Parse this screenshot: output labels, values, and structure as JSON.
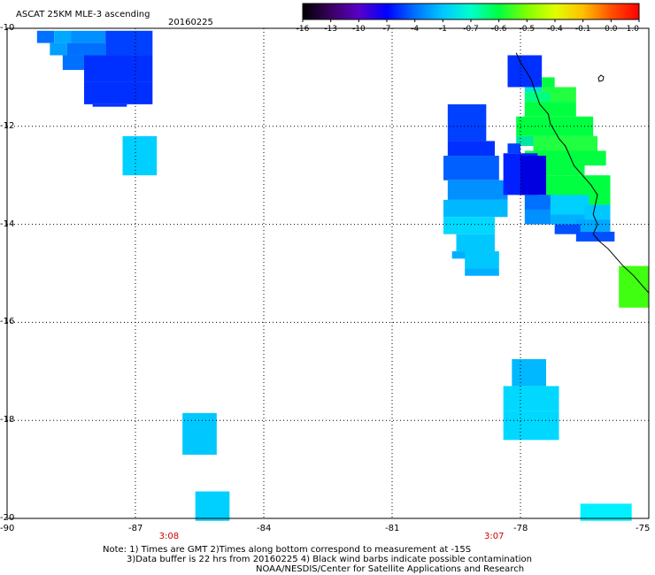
{
  "title": "ASCAT 25KM MLE-3 ascending",
  "date": "20160225",
  "colorbar": {
    "ticks": [
      "-16",
      "-13",
      "-10",
      "-7",
      "-4",
      "-1",
      "-0.7",
      "-0.6",
      "-0.5",
      "-0.4",
      "-0.1",
      "0.0",
      "1.0"
    ],
    "colors": [
      "#000000",
      "#3a0060",
      "#5a00c8",
      "#0000ff",
      "#0070ff",
      "#00c8ff",
      "#00ffcc",
      "#00ff40",
      "#80ff00",
      "#e0ff00",
      "#ffc000",
      "#ff5000",
      "#ff0000"
    ]
  },
  "axes": {
    "x_ticks": [
      "-90",
      "-87",
      "-84",
      "-81",
      "-78",
      "-75"
    ],
    "y_ticks": [
      "-10",
      "-12",
      "-14",
      "-16",
      "-18",
      "-20"
    ],
    "x_range": [
      -90,
      -75
    ],
    "y_range": [
      -10,
      -20
    ]
  },
  "time_labels": [
    {
      "text": "3:08",
      "lon": -86.2
    },
    {
      "text": "3:07",
      "lon": -78.6
    }
  ],
  "notes": {
    "line1": "Note: 1) Times are GMT 2)Times along bottom correspond to measurement at -15S",
    "line2": "3)Data buffer is 22 hrs from 20160225 4) Black wind barbs indicate possible contamination",
    "line3": "NOAA/NESDIS/Center for Satellite Applications and Research"
  },
  "cells": [
    {
      "lon0": -89.3,
      "lon1": -88.9,
      "lat0": -10.05,
      "lat1": -10.3,
      "c": "#0070ff"
    },
    {
      "lon0": -88.9,
      "lon1": -88.5,
      "lat0": -10.05,
      "lat1": -10.3,
      "c": "#00a8ff"
    },
    {
      "lon0": -88.5,
      "lon1": -87.7,
      "lat0": -10.05,
      "lat1": -10.3,
      "c": "#0090ff"
    },
    {
      "lon0": -87.7,
      "lon1": -86.6,
      "lat0": -10.05,
      "lat1": -10.55,
      "c": "#0040ff"
    },
    {
      "lon0": -89.0,
      "lon1": -88.6,
      "lat0": -10.3,
      "lat1": -10.55,
      "c": "#00a0ff"
    },
    {
      "lon0": -88.6,
      "lon1": -87.7,
      "lat0": -10.3,
      "lat1": -10.55,
      "c": "#0070ff"
    },
    {
      "lon0": -88.7,
      "lon1": -88.2,
      "lat0": -10.55,
      "lat1": -10.85,
      "c": "#0070ff"
    },
    {
      "lon0": -88.2,
      "lon1": -86.6,
      "lat0": -10.55,
      "lat1": -11.1,
      "c": "#0030ff"
    },
    {
      "lon0": -88.2,
      "lon1": -86.6,
      "lat0": -11.1,
      "lat1": -11.55,
      "c": "#0030ff"
    },
    {
      "lon0": -88.0,
      "lon1": -87.2,
      "lat0": -11.55,
      "lat1": -11.6,
      "c": "#0030ff"
    },
    {
      "lon0": -87.3,
      "lon1": -86.5,
      "lat0": -12.2,
      "lat1": -13.0,
      "c": "#00d0ff"
    },
    {
      "lon0": -78.3,
      "lon1": -77.5,
      "lat0": -10.55,
      "lat1": -11.2,
      "c": "#0030ff"
    },
    {
      "lon0": -77.5,
      "lon1": -77.2,
      "lat0": -11.0,
      "lat1": -11.2,
      "c": "#00ff40"
    },
    {
      "lon0": -77.9,
      "lon1": -77.5,
      "lat0": -11.2,
      "lat1": -11.3,
      "c": "#00e8d0"
    },
    {
      "lon0": -77.5,
      "lon1": -76.7,
      "lat0": -11.2,
      "lat1": -11.5,
      "c": "#20ff40"
    },
    {
      "lon0": -77.9,
      "lon1": -77.3,
      "lat0": -11.3,
      "lat1": -11.5,
      "c": "#00ff80"
    },
    {
      "lon0": -77.9,
      "lon1": -76.7,
      "lat0": -11.5,
      "lat1": -11.8,
      "c": "#00ff40"
    },
    {
      "lon0": -78.1,
      "lon1": -76.3,
      "lat0": -11.8,
      "lat1": -12.2,
      "c": "#00ff40"
    },
    {
      "lon0": -78.1,
      "lon1": -77.7,
      "lat0": -12.2,
      "lat1": -12.4,
      "c": "#00e8a0"
    },
    {
      "lon0": -77.7,
      "lon1": -76.2,
      "lat0": -12.2,
      "lat1": -12.5,
      "c": "#20ff40"
    },
    {
      "lon0": -76.5,
      "lon1": -76.0,
      "lat0": -12.5,
      "lat1": -12.8,
      "c": "#00ff40"
    },
    {
      "lon0": -77.9,
      "lon1": -76.5,
      "lat0": -12.5,
      "lat1": -13.0,
      "c": "#00ff40"
    },
    {
      "lon0": -77.4,
      "lon1": -75.9,
      "lat0": -13.0,
      "lat1": -13.6,
      "c": "#00ff40"
    },
    {
      "lon0": -79.7,
      "lon1": -78.8,
      "lat0": -11.55,
      "lat1": -12.3,
      "c": "#0040ff"
    },
    {
      "lon0": -79.7,
      "lon1": -78.6,
      "lat0": -12.3,
      "lat1": -12.6,
      "c": "#0030ff"
    },
    {
      "lon0": -79.8,
      "lon1": -78.5,
      "lat0": -12.6,
      "lat1": -13.1,
      "c": "#0060ff"
    },
    {
      "lon0": -79.7,
      "lon1": -78.3,
      "lat0": -13.1,
      "lat1": -13.5,
      "c": "#0090ff"
    },
    {
      "lon0": -79.8,
      "lon1": -78.3,
      "lat0": -13.5,
      "lat1": -13.85,
      "c": "#00b8ff"
    },
    {
      "lon0": -79.8,
      "lon1": -78.6,
      "lat0": -13.85,
      "lat1": -14.2,
      "c": "#00d8ff"
    },
    {
      "lon0": -79.5,
      "lon1": -78.6,
      "lat0": -14.2,
      "lat1": -14.55,
      "c": "#00c8ff"
    },
    {
      "lon0": -79.6,
      "lon1": -78.8,
      "lat0": -14.55,
      "lat1": -14.7,
      "c": "#00b0ff"
    },
    {
      "lon0": -79.3,
      "lon1": -78.5,
      "lat0": -14.55,
      "lat1": -14.9,
      "c": "#00c8ff"
    },
    {
      "lon0": -79.3,
      "lon1": -78.5,
      "lat0": -14.9,
      "lat1": -15.05,
      "c": "#00b0ff"
    },
    {
      "lon0": -78.3,
      "lon1": -78.0,
      "lat0": -12.35,
      "lat1": -12.55,
      "c": "#0040ff"
    },
    {
      "lon0": -78.4,
      "lon1": -77.6,
      "lat0": -12.55,
      "lat1": -13.4,
      "c": "#0020ff"
    },
    {
      "lon0": -78.0,
      "lon1": -77.4,
      "lat0": -12.6,
      "lat1": -13.4,
      "c": "#0000e0"
    },
    {
      "lon0": -77.9,
      "lon1": -77.2,
      "lat0": -13.4,
      "lat1": -13.7,
      "c": "#0070ff"
    },
    {
      "lon0": -77.9,
      "lon1": -77.2,
      "lat0": -13.7,
      "lat1": -14.0,
      "c": "#0090ff"
    },
    {
      "lon0": -77.3,
      "lon1": -76.4,
      "lat0": -13.4,
      "lat1": -13.8,
      "c": "#00d0ff"
    },
    {
      "lon0": -76.5,
      "lon1": -75.9,
      "lat0": -13.6,
      "lat1": -13.9,
      "c": "#00c8ff"
    },
    {
      "lon0": -77.3,
      "lon1": -76.5,
      "lat0": -13.8,
      "lat1": -14.0,
      "c": "#00b0ff"
    },
    {
      "lon0": -76.7,
      "lon1": -75.9,
      "lat0": -13.9,
      "lat1": -14.15,
      "c": "#00a8ff"
    },
    {
      "lon0": -77.2,
      "lon1": -76.6,
      "lat0": -14.0,
      "lat1": -14.2,
      "c": "#0050ff"
    },
    {
      "lon0": -76.7,
      "lon1": -75.8,
      "lat0": -14.15,
      "lat1": -14.35,
      "c": "#0050ff"
    },
    {
      "lon0": -75.7,
      "lon1": -75.0,
      "lat0": -14.85,
      "lat1": -15.7,
      "c": "#40ff10"
    },
    {
      "lon0": -78.2,
      "lon1": -77.4,
      "lat0": -16.75,
      "lat1": -17.3,
      "c": "#00b8ff"
    },
    {
      "lon0": -78.4,
      "lon1": -77.1,
      "lat0": -17.3,
      "lat1": -17.8,
      "c": "#00d8ff"
    },
    {
      "lon0": -78.4,
      "lon1": -77.1,
      "lat0": -17.8,
      "lat1": -18.4,
      "c": "#00d8ff"
    },
    {
      "lon0": -85.9,
      "lon1": -85.1,
      "lat0": -17.85,
      "lat1": -18.7,
      "c": "#00c8ff"
    },
    {
      "lon0": -85.6,
      "lon1": -84.8,
      "lat0": -19.45,
      "lat1": -20.05,
      "c": "#00d0ff"
    },
    {
      "lon0": -76.6,
      "lon1": -75.4,
      "lat0": -19.7,
      "lat1": -20.05,
      "c": "#00f0ff"
    }
  ],
  "coastline": [
    [
      -78.1,
      -10.5
    ],
    [
      -78.0,
      -10.7
    ],
    [
      -77.85,
      -10.9
    ],
    [
      -77.75,
      -11.05
    ],
    [
      -77.65,
      -11.3
    ],
    [
      -77.55,
      -11.55
    ],
    [
      -77.35,
      -11.75
    ],
    [
      -77.3,
      -11.95
    ],
    [
      -77.2,
      -12.1
    ],
    [
      -77.1,
      -12.25
    ],
    [
      -76.95,
      -12.4
    ],
    [
      -76.85,
      -12.6
    ],
    [
      -76.75,
      -12.8
    ],
    [
      -76.55,
      -13.0
    ],
    [
      -76.35,
      -13.2
    ],
    [
      -76.2,
      -13.4
    ],
    [
      -76.25,
      -13.6
    ],
    [
      -76.3,
      -13.8
    ],
    [
      -76.2,
      -14.0
    ],
    [
      -76.3,
      -14.2
    ],
    [
      -76.15,
      -14.35
    ],
    [
      -75.95,
      -14.5
    ],
    [
      -75.8,
      -14.65
    ],
    [
      -75.6,
      -14.85
    ],
    [
      -75.35,
      -15.05
    ],
    [
      -75.15,
      -15.25
    ],
    [
      -75.0,
      -15.4
    ]
  ]
}
